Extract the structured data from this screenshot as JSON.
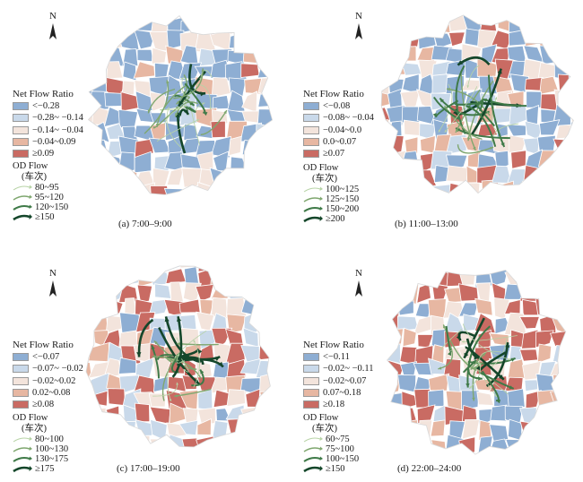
{
  "compass_label": "N",
  "legend_title": "Net Flow Ratio",
  "od_title": "OD Flow",
  "od_unit": "(车次)",
  "colors": {
    "strong_neg": "#8eaed3",
    "neg": "#c9d9ea",
    "neutral": "#f3e4dc",
    "pos": "#e7b7a2",
    "strong_pos": "#c96b63",
    "flow_light": "#9cbf8d",
    "flow_dark": "#14462a",
    "boundary": "#ffffff"
  },
  "panels": [
    {
      "caption": "(a) 7:00–9:00",
      "legend": [
        "<−0.28",
        "−0.28~ −0.14",
        "−0.14~ −0.04",
        "−0.04~0.09",
        "≥0.09"
      ],
      "od": [
        "80~95",
        "95~120",
        "120~150",
        "≥150"
      ]
    },
    {
      "caption": "(b) 11:00–13:00",
      "legend": [
        "<−0.08",
        "−0.08~ −0.04",
        "−0.04~0.0",
        "0.0~0.07",
        "≥0.07"
      ],
      "od": [
        "100~125",
        "125~150",
        "150~200",
        "≥200"
      ]
    },
    {
      "caption": "(c) 17:00–19:00",
      "legend": [
        "<−0.07",
        "−0.07~ −0.02",
        "−0.02~0.02",
        "0.02~0.08",
        "≥0.08"
      ],
      "od": [
        "80~100",
        "100~130",
        "130~175",
        "≥175"
      ]
    },
    {
      "caption": "(d) 22:00–24:00",
      "legend": [
        "<−0.11",
        "−0.02~ −0.11",
        "−0.02~0.07",
        "0.07~0.18",
        "≥0.18"
      ],
      "od": [
        "60~75",
        "75~100",
        "100~150",
        "≥150"
      ]
    }
  ]
}
